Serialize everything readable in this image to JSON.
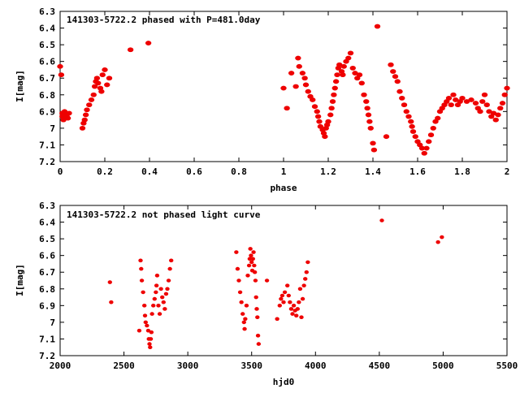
{
  "chart_data": [
    {
      "type": "scatter",
      "title": "141303-5722.2 phased with P=481.0day",
      "xlabel": "phase",
      "ylabel": "I[mag]",
      "xlim": [
        0,
        2
      ],
      "ylim": [
        7.2,
        6.3
      ],
      "y_inverted": true,
      "grid": false,
      "marker_color": "#ee0000",
      "xticks": [
        {
          "v": 0,
          "label": "0"
        },
        {
          "v": 0.2,
          "label": "0.2"
        },
        {
          "v": 0.4,
          "label": "0.4"
        },
        {
          "v": 0.6,
          "label": "0.6"
        },
        {
          "v": 0.8,
          "label": "0.8"
        },
        {
          "v": 1,
          "label": "1"
        },
        {
          "v": 1.2,
          "label": "1.2"
        },
        {
          "v": 1.4,
          "label": "1.4"
        },
        {
          "v": 1.6,
          "label": "1.6"
        },
        {
          "v": 1.8,
          "label": "1.8"
        },
        {
          "v": 2,
          "label": "2"
        }
      ],
      "yticks": [
        {
          "v": 6.3,
          "label": "6.3"
        },
        {
          "v": 6.4,
          "label": "6.4"
        },
        {
          "v": 6.5,
          "label": "6.5"
        },
        {
          "v": 6.6,
          "label": "6.6"
        },
        {
          "v": 6.7,
          "label": "6.7"
        },
        {
          "v": 6.8,
          "label": "6.8"
        },
        {
          "v": 6.9,
          "label": "6.9"
        },
        {
          "v": 7,
          "label": "7"
        },
        {
          "v": 7.1,
          "label": "7.1"
        },
        {
          "v": 7.2,
          "label": "7.2"
        }
      ],
      "points": [
        [
          0.0,
          6.63
        ],
        [
          0.005,
          6.68
        ],
        [
          0.01,
          6.91
        ],
        [
          0.01,
          6.93
        ],
        [
          0.015,
          6.95
        ],
        [
          0.02,
          6.9
        ],
        [
          0.025,
          6.92
        ],
        [
          0.03,
          6.93
        ],
        [
          0.035,
          6.94
        ],
        [
          0.04,
          6.91
        ],
        [
          0.1,
          7.0
        ],
        [
          0.105,
          6.97
        ],
        [
          0.11,
          6.95
        ],
        [
          0.115,
          6.92
        ],
        [
          0.12,
          6.89
        ],
        [
          0.13,
          6.86
        ],
        [
          0.14,
          6.83
        ],
        [
          0.15,
          6.8
        ],
        [
          0.155,
          6.75
        ],
        [
          0.16,
          6.72
        ],
        [
          0.165,
          6.7
        ],
        [
          0.17,
          6.73
        ],
        [
          0.18,
          6.76
        ],
        [
          0.185,
          6.78
        ],
        [
          0.19,
          6.68
        ],
        [
          0.2,
          6.65
        ],
        [
          0.21,
          6.74
        ],
        [
          0.22,
          6.7
        ],
        [
          0.315,
          6.53
        ],
        [
          0.395,
          6.49
        ],
        [
          1.0,
          6.76
        ],
        [
          1.015,
          6.88
        ],
        [
          1.035,
          6.67
        ],
        [
          1.055,
          6.75
        ],
        [
          1.065,
          6.58
        ],
        [
          1.07,
          6.63
        ],
        [
          1.085,
          6.67
        ],
        [
          1.095,
          6.7
        ],
        [
          1.1,
          6.74
        ],
        [
          1.11,
          6.78
        ],
        [
          1.12,
          6.81
        ],
        [
          1.13,
          6.83
        ],
        [
          1.14,
          6.87
        ],
        [
          1.15,
          6.9
        ],
        [
          1.155,
          6.93
        ],
        [
          1.16,
          6.96
        ],
        [
          1.165,
          6.99
        ],
        [
          1.175,
          7.01
        ],
        [
          1.18,
          7.03
        ],
        [
          1.185,
          7.05
        ],
        [
          1.19,
          7.0
        ],
        [
          1.195,
          6.98
        ],
        [
          1.2,
          6.96
        ],
        [
          1.21,
          6.92
        ],
        [
          1.215,
          6.88
        ],
        [
          1.22,
          6.84
        ],
        [
          1.225,
          6.8
        ],
        [
          1.23,
          6.76
        ],
        [
          1.235,
          6.72
        ],
        [
          1.24,
          6.68
        ],
        [
          1.245,
          6.64
        ],
        [
          1.25,
          6.62
        ],
        [
          1.26,
          6.66
        ],
        [
          1.265,
          6.68
        ],
        [
          1.27,
          6.63
        ],
        [
          1.28,
          6.6
        ],
        [
          1.29,
          6.58
        ],
        [
          1.3,
          6.55
        ],
        [
          1.31,
          6.64
        ],
        [
          1.32,
          6.67
        ],
        [
          1.33,
          6.7
        ],
        [
          1.34,
          6.68
        ],
        [
          1.35,
          6.73
        ],
        [
          1.36,
          6.8
        ],
        [
          1.37,
          6.84
        ],
        [
          1.375,
          6.88
        ],
        [
          1.38,
          6.92
        ],
        [
          1.385,
          6.96
        ],
        [
          1.39,
          7.0
        ],
        [
          1.4,
          7.09
        ],
        [
          1.405,
          7.13
        ],
        [
          1.42,
          6.39
        ],
        [
          1.46,
          7.05
        ],
        [
          1.48,
          6.62
        ],
        [
          1.49,
          6.66
        ],
        [
          1.5,
          6.69
        ],
        [
          1.51,
          6.72
        ],
        [
          1.52,
          6.78
        ],
        [
          1.53,
          6.82
        ],
        [
          1.54,
          6.86
        ],
        [
          1.55,
          6.9
        ],
        [
          1.56,
          6.93
        ],
        [
          1.57,
          6.96
        ],
        [
          1.575,
          6.99
        ],
        [
          1.58,
          7.02
        ],
        [
          1.59,
          7.05
        ],
        [
          1.6,
          7.08
        ],
        [
          1.61,
          7.1
        ],
        [
          1.62,
          7.12
        ],
        [
          1.63,
          7.15
        ],
        [
          1.64,
          7.12
        ],
        [
          1.65,
          7.08
        ],
        [
          1.66,
          7.04
        ],
        [
          1.67,
          7.0
        ],
        [
          1.68,
          6.96
        ],
        [
          1.69,
          6.94
        ],
        [
          1.7,
          6.9
        ],
        [
          1.71,
          6.88
        ],
        [
          1.72,
          6.86
        ],
        [
          1.73,
          6.84
        ],
        [
          1.74,
          6.82
        ],
        [
          1.75,
          6.86
        ],
        [
          1.76,
          6.8
        ],
        [
          1.77,
          6.83
        ],
        [
          1.78,
          6.86
        ],
        [
          1.79,
          6.84
        ],
        [
          1.8,
          6.82
        ],
        [
          1.82,
          6.84
        ],
        [
          1.84,
          6.83
        ],
        [
          1.86,
          6.85
        ],
        [
          1.87,
          6.88
        ],
        [
          1.88,
          6.9
        ],
        [
          1.89,
          6.84
        ],
        [
          1.9,
          6.8
        ],
        [
          1.91,
          6.86
        ],
        [
          1.92,
          6.9
        ],
        [
          1.93,
          6.93
        ],
        [
          1.94,
          6.91
        ],
        [
          1.95,
          6.95
        ],
        [
          1.96,
          6.92
        ],
        [
          1.97,
          6.88
        ],
        [
          1.98,
          6.85
        ],
        [
          1.99,
          6.8
        ],
        [
          2.0,
          6.76
        ]
      ]
    },
    {
      "type": "scatter",
      "title": "141303-5722.2 not phased light curve",
      "xlabel": "hjd0",
      "ylabel": "I[mag]",
      "xlim": [
        2000,
        5500
      ],
      "ylim": [
        7.2,
        6.3
      ],
      "y_inverted": true,
      "grid": false,
      "marker_color": "#ee0000",
      "xticks": [
        {
          "v": 2000,
          "label": "2000"
        },
        {
          "v": 2500,
          "label": "2500"
        },
        {
          "v": 3000,
          "label": "3000"
        },
        {
          "v": 3500,
          "label": "3500"
        },
        {
          "v": 4000,
          "label": "4000"
        },
        {
          "v": 4500,
          "label": "4500"
        },
        {
          "v": 5000,
          "label": "5000"
        },
        {
          "v": 5500,
          "label": "5500"
        }
      ],
      "yticks": [
        {
          "v": 6.3,
          "label": "6.3"
        },
        {
          "v": 6.4,
          "label": "6.4"
        },
        {
          "v": 6.5,
          "label": "6.5"
        },
        {
          "v": 6.6,
          "label": "6.6"
        },
        {
          "v": 6.7,
          "label": "6.7"
        },
        {
          "v": 6.8,
          "label": "6.8"
        },
        {
          "v": 6.9,
          "label": "6.9"
        },
        {
          "v": 7,
          "label": "7"
        },
        {
          "v": 7.1,
          "label": "7.1"
        },
        {
          "v": 7.2,
          "label": "7.2"
        }
      ],
      "points": [
        [
          2390,
          6.76
        ],
        [
          2400,
          6.88
        ],
        [
          2620,
          7.05
        ],
        [
          2630,
          6.63
        ],
        [
          2635,
          6.68
        ],
        [
          2640,
          6.75
        ],
        [
          2650,
          6.82
        ],
        [
          2660,
          6.9
        ],
        [
          2665,
          6.96
        ],
        [
          2670,
          7.0
        ],
        [
          2680,
          7.02
        ],
        [
          2690,
          7.05
        ],
        [
          2695,
          7.1
        ],
        [
          2700,
          7.13
        ],
        [
          2705,
          7.15
        ],
        [
          2710,
          7.1
        ],
        [
          2715,
          7.06
        ],
        [
          2720,
          6.95
        ],
        [
          2730,
          6.9
        ],
        [
          2740,
          6.86
        ],
        [
          2750,
          6.82
        ],
        [
          2755,
          6.78
        ],
        [
          2760,
          6.72
        ],
        [
          2770,
          6.9
        ],
        [
          2780,
          6.95
        ],
        [
          2790,
          6.8
        ],
        [
          2800,
          6.85
        ],
        [
          2810,
          6.88
        ],
        [
          2820,
          6.92
        ],
        [
          2830,
          6.83
        ],
        [
          2840,
          6.8
        ],
        [
          2850,
          6.75
        ],
        [
          2860,
          6.68
        ],
        [
          2870,
          6.63
        ],
        [
          3380,
          6.58
        ],
        [
          3390,
          6.68
        ],
        [
          3400,
          6.75
        ],
        [
          3410,
          6.82
        ],
        [
          3420,
          6.88
        ],
        [
          3430,
          6.95
        ],
        [
          3440,
          7.0
        ],
        [
          3445,
          7.04
        ],
        [
          3450,
          6.98
        ],
        [
          3460,
          6.9
        ],
        [
          3470,
          6.72
        ],
        [
          3480,
          6.66
        ],
        [
          3485,
          6.62
        ],
        [
          3490,
          6.56
        ],
        [
          3495,
          6.6
        ],
        [
          3500,
          6.64
        ],
        [
          3505,
          6.69
        ],
        [
          3510,
          6.62
        ],
        [
          3515,
          6.58
        ],
        [
          3520,
          6.66
        ],
        [
          3525,
          6.7
        ],
        [
          3530,
          6.75
        ],
        [
          3535,
          6.85
        ],
        [
          3540,
          6.92
        ],
        [
          3545,
          6.97
        ],
        [
          3550,
          7.08
        ],
        [
          3555,
          7.13
        ],
        [
          3620,
          6.75
        ],
        [
          3700,
          6.98
        ],
        [
          3720,
          6.9
        ],
        [
          3730,
          6.86
        ],
        [
          3740,
          6.84
        ],
        [
          3750,
          6.88
        ],
        [
          3760,
          6.82
        ],
        [
          3780,
          6.78
        ],
        [
          3790,
          6.84
        ],
        [
          3800,
          6.88
        ],
        [
          3810,
          6.92
        ],
        [
          3820,
          6.95
        ],
        [
          3830,
          6.9
        ],
        [
          3840,
          6.93
        ],
        [
          3850,
          6.96
        ],
        [
          3860,
          6.92
        ],
        [
          3870,
          6.88
        ],
        [
          3880,
          6.8
        ],
        [
          3890,
          6.97
        ],
        [
          3900,
          6.86
        ],
        [
          3910,
          6.78
        ],
        [
          3920,
          6.74
        ],
        [
          3930,
          6.7
        ],
        [
          3940,
          6.64
        ],
        [
          4520,
          6.39
        ],
        [
          4960,
          6.52
        ],
        [
          4990,
          6.49
        ]
      ]
    }
  ]
}
